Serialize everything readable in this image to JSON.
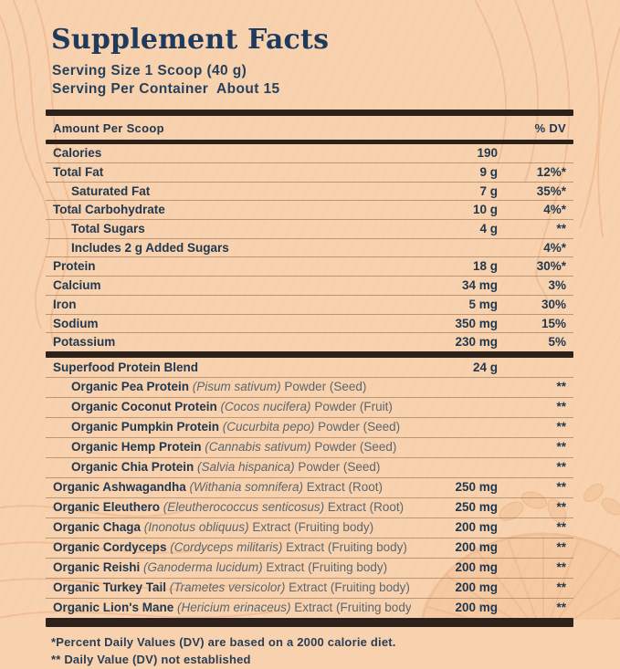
{
  "label": {
    "title": "Supplement Facts",
    "serving_size": "Serving Size 1 Scoop (40 g)",
    "servings_per_container": "Serving Per Container  About 15",
    "columns": {
      "amount": "Amount Per Scoop",
      "dv": "% DV"
    },
    "nutrient_rows": [
      {
        "name": "Calories",
        "latin": "",
        "desc": "",
        "amount": "190",
        "dv": "",
        "indent": 0
      },
      {
        "name": "Total Fat",
        "latin": "",
        "desc": "",
        "amount": "9 g",
        "dv": "12%*",
        "indent": 0
      },
      {
        "name": "Saturated Fat",
        "latin": "",
        "desc": "",
        "amount": "7 g",
        "dv": "35%*",
        "indent": 1
      },
      {
        "name": "Total Carbohydrate",
        "latin": "",
        "desc": "",
        "amount": "10 g",
        "dv": "4%*",
        "indent": 0
      },
      {
        "name": "Total Sugars",
        "latin": "",
        "desc": "",
        "amount": "4 g",
        "dv": "**",
        "indent": 1
      },
      {
        "name": "Includes 2 g Added Sugars",
        "latin": "",
        "desc": "",
        "amount": "",
        "dv": "4%*",
        "indent": 1
      },
      {
        "name": "Protein",
        "latin": "",
        "desc": "",
        "amount": "18 g",
        "dv": "30%*",
        "indent": 0
      },
      {
        "name": "Calcium",
        "latin": "",
        "desc": "",
        "amount": "34 mg",
        "dv": "3%",
        "indent": 0
      },
      {
        "name": "Iron",
        "latin": "",
        "desc": "",
        "amount": "5 mg",
        "dv": "30%",
        "indent": 0
      },
      {
        "name": "Sodium",
        "latin": "",
        "desc": "",
        "amount": "350 mg",
        "dv": "15%",
        "indent": 0
      },
      {
        "name": "Potassium",
        "latin": "",
        "desc": "",
        "amount": "230 mg",
        "dv": "5%",
        "indent": 0
      }
    ],
    "blend_rows": [
      {
        "name": "Superfood Protein Blend",
        "latin": "",
        "desc": "",
        "amount": "24 g",
        "dv": "",
        "indent": 0
      },
      {
        "name": "Organic Pea Protein",
        "latin": "(Pisum sativum)",
        "desc": "Powder (Seed)",
        "amount": "",
        "dv": "**",
        "indent": 1
      },
      {
        "name": "Organic Coconut Protein",
        "latin": "(Cocos nucifera)",
        "desc": "Powder (Fruit)",
        "amount": "",
        "dv": "**",
        "indent": 1
      },
      {
        "name": "Organic Pumpkin Protein",
        "latin": "(Cucurbita pepo)",
        "desc": "Powder (Seed)",
        "amount": "",
        "dv": "**",
        "indent": 1
      },
      {
        "name": "Organic Hemp Protein",
        "latin": "(Cannabis sativum)",
        "desc": "Powder (Seed)",
        "amount": "",
        "dv": "**",
        "indent": 1
      },
      {
        "name": "Organic Chia Protein",
        "latin": "(Salvia hispanica)",
        "desc": "Powder (Seed)",
        "amount": "",
        "dv": "**",
        "indent": 1
      },
      {
        "name": "Organic Ashwagandha",
        "latin": "(Withania somnifera)",
        "desc": "Extract (Root)",
        "amount": "250 mg",
        "dv": "**",
        "indent": 0
      },
      {
        "name": "Organic Eleuthero",
        "latin": "(Eleutherococcus senticosus)",
        "desc": "Extract (Root)",
        "amount": "250 mg",
        "dv": "**",
        "indent": 0
      },
      {
        "name": "Organic Chaga",
        "latin": "(Inonotus obliquus)",
        "desc": "Extract (Fruiting body)",
        "amount": "200 mg",
        "dv": "**",
        "indent": 0
      },
      {
        "name": "Organic Cordyceps",
        "latin": "(Cordyceps militaris)",
        "desc": "Extract (Fruiting body)",
        "amount": "200 mg",
        "dv": "**",
        "indent": 0
      },
      {
        "name": "Organic Reishi",
        "latin": "(Ganoderma lucidum)",
        "desc": "Extract (Fruiting body)",
        "amount": "200 mg",
        "dv": "**",
        "indent": 0
      },
      {
        "name": "Organic Turkey Tail",
        "latin": "(Trametes versicolor)",
        "desc": "Extract (Fruiting body)",
        "amount": "200 mg",
        "dv": "**",
        "indent": 0
      },
      {
        "name": "Organic Lion's Mane",
        "latin": "(Hericium erinaceus)",
        "desc": "Extract (Fruiting body)",
        "amount": "200 mg",
        "dv": "**",
        "indent": 0
      }
    ],
    "footnotes": [
      "*Percent Daily Values (DV) are based on a 2000 calorie diet.",
      "** Daily Value (DV) not established"
    ]
  },
  "colors": {
    "background": "#F8D2AF",
    "title_navy": "#1E3A5C",
    "text_navy": "#22384E",
    "text_grey": "#5C666D",
    "rule_brown": "#97704F",
    "bar_dark": "#2D211B",
    "decor_orange": "#E29A66"
  }
}
